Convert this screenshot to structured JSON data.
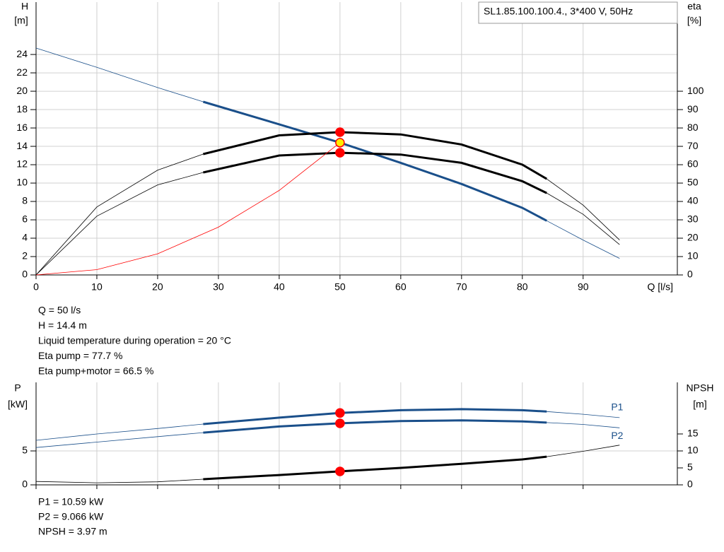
{
  "chart_data": [
    {
      "type": "line",
      "title": "SL1.85.100.100.4., 3*400 V, 50Hz",
      "x_label": "Q [l/s]",
      "y_label": [
        "H",
        "[m]"
      ],
      "y2_label": [
        "eta",
        "[%]"
      ],
      "xlim": [
        0,
        105.5
      ],
      "xticks": [
        0,
        10,
        20,
        30,
        40,
        50,
        60,
        70,
        80,
        90
      ],
      "ylim": [
        0,
        29.7
      ],
      "yticks": [
        0,
        2,
        4,
        6,
        8,
        10,
        12,
        14,
        16,
        18,
        20,
        22,
        24
      ],
      "y2lim": [
        0,
        148.5
      ],
      "y2ticks": [
        0,
        10,
        20,
        30,
        40,
        50,
        60,
        70,
        80,
        90,
        100
      ],
      "grid": true,
      "show_xtick_labels": true,
      "operating_range": [
        27.5,
        84
      ],
      "duty_x": 50,
      "series": [
        {
          "color": "#1a4f8a",
          "emphasis": true,
          "duty_marker": "#ffee00",
          "x": [
            0,
            10,
            20,
            27.5,
            40,
            50,
            60,
            70,
            80,
            84,
            90,
            96
          ],
          "values": [
            24.7,
            22.6,
            20.4,
            18.85,
            16.4,
            14.4,
            12.2,
            9.9,
            7.3,
            5.9,
            3.8,
            1.8
          ]
        },
        {
          "color": "#000000",
          "emphasis": true,
          "axis": "y2",
          "duty_marker": "#ff0000",
          "x": [
            0,
            10,
            20,
            27.5,
            40,
            50,
            60,
            70,
            80,
            84,
            90,
            96
          ],
          "values": [
            0,
            37,
            57,
            65.8,
            76,
            77.7,
            76.5,
            71,
            60,
            52.3,
            38,
            19
          ]
        },
        {
          "color": "#000000",
          "emphasis": true,
          "axis": "y2",
          "duty_marker": "#ff0000",
          "x": [
            0,
            10,
            20,
            27.5,
            40,
            50,
            60,
            70,
            80,
            84,
            90,
            96
          ],
          "values": [
            0,
            32,
            49,
            55.8,
            65,
            66.5,
            65.5,
            61,
            51,
            44.6,
            33,
            16.5
          ]
        },
        {
          "color": "#ff0000",
          "emphasis": false,
          "x": [
            0,
            10,
            20,
            30,
            40,
            50
          ],
          "values": [
            0,
            0.58,
            2.3,
            5.2,
            9.2,
            14.4
          ]
        }
      ]
    },
    {
      "type": "line",
      "y_label": [
        "P",
        "[kW]"
      ],
      "y2_label": [
        "NPSH",
        "[m]"
      ],
      "xlim": [
        0,
        105.5
      ],
      "xticks": [
        0,
        10,
        20,
        30,
        40,
        50,
        60,
        70,
        80,
        90
      ],
      "ylim": [
        0,
        15.1
      ],
      "yticks": [
        0,
        5
      ],
      "y2lim": [
        0,
        30.2
      ],
      "y2ticks": [
        0,
        5,
        10,
        15
      ],
      "grid": true,
      "show_xtick_labels": false,
      "operating_range": [
        27.5,
        84
      ],
      "duty_x": 50,
      "series": [
        {
          "name": "P1",
          "label_side": "above",
          "color": "#1a4f8a",
          "emphasis": true,
          "duty_marker": "#ff0000",
          "x": [
            0,
            10,
            20,
            27.5,
            40,
            50,
            60,
            70,
            80,
            84,
            90,
            96
          ],
          "values": [
            6.56,
            7.5,
            8.3,
            8.96,
            9.9,
            10.59,
            11.0,
            11.15,
            11.0,
            10.8,
            10.4,
            9.9
          ]
        },
        {
          "name": "P2",
          "label_side": "below",
          "color": "#1a4f8a",
          "emphasis": true,
          "duty_marker": "#ff0000",
          "x": [
            0,
            10,
            20,
            27.5,
            40,
            50,
            60,
            70,
            80,
            84,
            90,
            96
          ],
          "values": [
            5.5,
            6.3,
            7.1,
            7.7,
            8.6,
            9.066,
            9.4,
            9.5,
            9.35,
            9.17,
            8.9,
            8.4
          ]
        },
        {
          "color": "#000000",
          "emphasis": true,
          "axis": "y2",
          "duty_marker": "#ff0000",
          "x": [
            0,
            10,
            20,
            27.5,
            40,
            50,
            60,
            70,
            80,
            84,
            90,
            96
          ],
          "values": [
            1.0,
            0.6,
            0.9,
            1.67,
            2.9,
            3.97,
            5.0,
            6.2,
            7.5,
            8.3,
            9.9,
            11.7
          ]
        }
      ]
    }
  ],
  "info": {
    "top": [
      "Q = 50 l/s",
      "H = 14.4 m",
      "Liquid temperature during operation = 20 °C",
      "Eta pump = 77.7 %",
      "Eta pump+motor = 66.5 %"
    ],
    "bottom": [
      "P1 = 10.59 kW",
      "P2 = 9.066 kW",
      "NPSH = 3.97 m"
    ]
  }
}
